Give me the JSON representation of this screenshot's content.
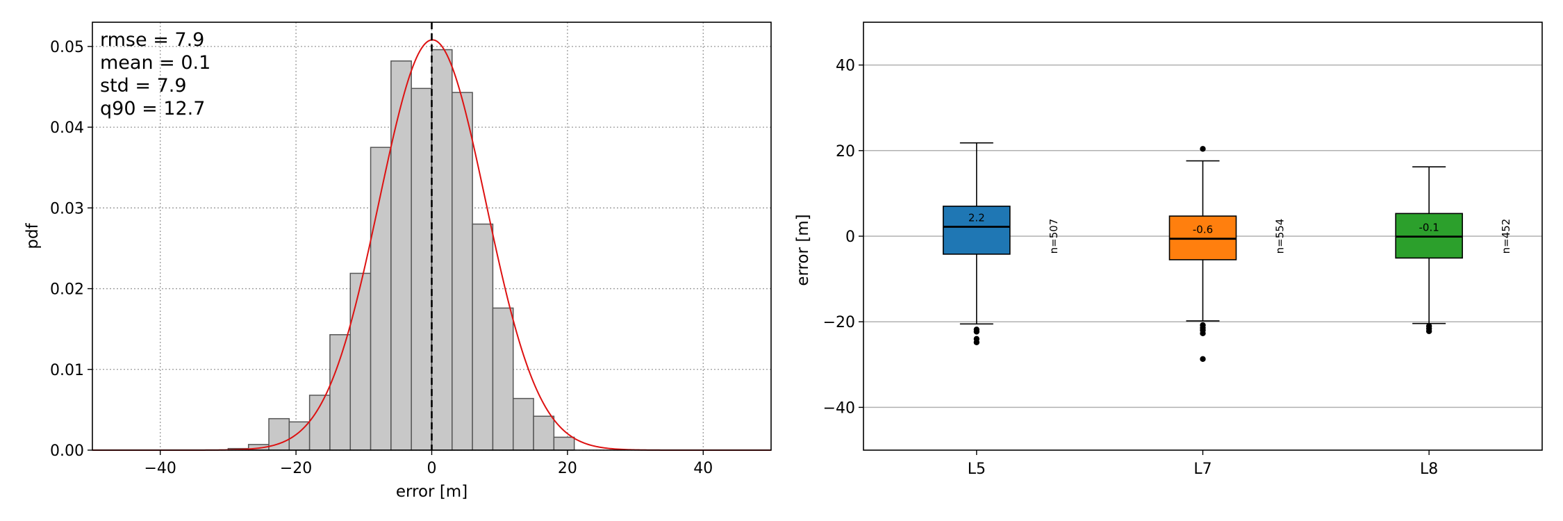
{
  "chart_data": [
    {
      "type": "bar",
      "subtype": "histogram",
      "xlabel": "error [m]",
      "ylabel": "pdf",
      "xlim": [
        -50,
        50
      ],
      "ylim": [
        0,
        0.053
      ],
      "grid": "dotted",
      "x_ticks": [
        -40,
        -20,
        0,
        20,
        40
      ],
      "x_tick_labels": [
        "−40",
        "−20",
        "0",
        "20",
        "40"
      ],
      "y_ticks": [
        0,
        0.01,
        0.02,
        0.03,
        0.04,
        0.05
      ],
      "y_tick_labels": [
        "0.00",
        "0.01",
        "0.02",
        "0.03",
        "0.04",
        "0.05"
      ],
      "bin_edges": [
        -30,
        -27,
        -24,
        -21,
        -18,
        -15,
        -12,
        -9,
        -6,
        -3,
        0,
        3,
        6,
        9,
        12,
        15,
        18,
        21,
        24
      ],
      "values": [
        0.0002,
        0.0007,
        0.0039,
        0.0035,
        0.0068,
        0.0143,
        0.0219,
        0.0375,
        0.0482,
        0.0448,
        0.0496,
        0.0443,
        0.028,
        0.0176,
        0.0064,
        0.0042,
        0.0016,
        0.0
      ],
      "bar_color": "#c8c8c8",
      "edge_color": "#555555",
      "normal_curve": {
        "mean": 0.1,
        "std": 7.85,
        "color": "#dd1111"
      },
      "vline_x": 0,
      "stats_lines": [
        "rmse = 7.9",
        "mean = 0.1",
        "std = 7.9",
        "q90 = 12.7"
      ]
    },
    {
      "type": "box",
      "xlabel": "",
      "ylabel": "error [m]",
      "ylim": [
        -50,
        50
      ],
      "grid": "horizontal",
      "y_ticks": [
        -40,
        -20,
        0,
        20,
        40
      ],
      "y_tick_labels": [
        "−40",
        "−20",
        "0",
        "20",
        "40"
      ],
      "categories": [
        "L5",
        "L7",
        "L8"
      ],
      "boxes": [
        {
          "label": "L5",
          "color": "#1f77b4",
          "q1": -4.2,
          "median": 2.2,
          "q3": 7.0,
          "whisker_low": -20.5,
          "whisker_high": 21.8,
          "outliers": [
            -21.8,
            -22.3,
            -24.0,
            -24.8
          ],
          "median_label": "2.2",
          "n_label": "n=507"
        },
        {
          "label": "L7",
          "color": "#ff7f0e",
          "q1": -5.5,
          "median": -0.6,
          "q3": 4.7,
          "whisker_low": -19.8,
          "whisker_high": 17.6,
          "outliers": [
            20.4,
            -20.8,
            -21.4,
            -22.0,
            -22.7,
            -28.7
          ],
          "median_label": "-0.6",
          "n_label": "n=554"
        },
        {
          "label": "L8",
          "color": "#2ca02c",
          "q1": -5.1,
          "median": -0.1,
          "q3": 5.3,
          "whisker_low": -20.4,
          "whisker_high": 16.2,
          "outliers": [
            -21.0,
            -21.6,
            -22.2
          ],
          "median_label": "-0.1",
          "n_label": "n=452"
        }
      ]
    }
  ]
}
